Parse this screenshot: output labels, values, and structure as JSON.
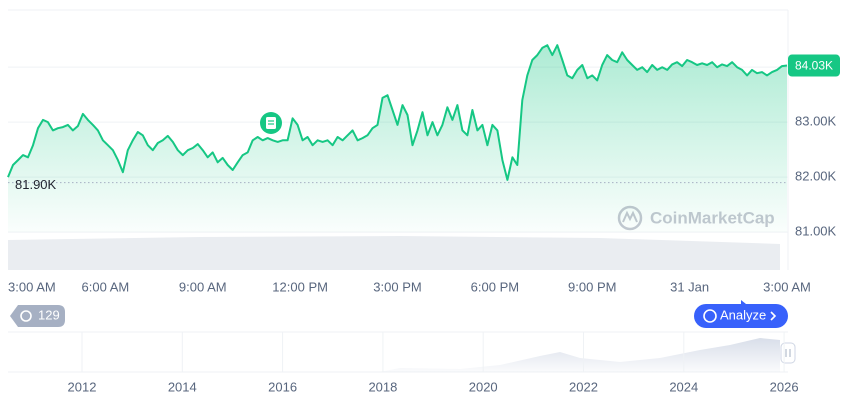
{
  "chart_data": {
    "type": "line",
    "series": [
      {
        "color": "#16c784",
        "values": [
          82.0,
          82.22,
          82.31,
          82.4,
          82.36,
          82.58,
          82.89,
          83.04,
          83.0,
          82.85,
          82.89,
          82.91,
          82.95,
          82.85,
          82.93,
          83.15,
          83.04,
          82.95,
          82.85,
          82.67,
          82.58,
          82.49,
          82.31,
          82.09,
          82.49,
          82.67,
          82.82,
          82.76,
          82.58,
          82.49,
          82.62,
          82.67,
          82.75,
          82.64,
          82.49,
          82.4,
          82.49,
          82.53,
          82.6,
          82.49,
          82.36,
          82.45,
          82.27,
          82.35,
          82.22,
          82.13,
          82.27,
          82.4,
          82.45,
          82.67,
          82.73,
          82.67,
          82.71,
          82.67,
          82.64,
          82.67,
          82.67,
          83.07,
          82.95,
          82.67,
          82.73,
          82.58,
          82.67,
          82.64,
          82.67,
          82.58,
          82.73,
          82.67,
          82.76,
          82.85,
          82.67,
          82.71,
          82.76,
          82.89,
          82.95,
          83.44,
          83.49,
          83.22,
          82.95,
          83.31,
          83.13,
          82.58,
          82.85,
          83.18,
          82.76,
          83.0,
          82.76,
          82.95,
          83.27,
          83.04,
          83.31,
          82.85,
          82.76,
          83.22,
          82.85,
          82.95,
          82.58,
          82.95,
          82.85,
          82.31,
          81.95,
          82.36,
          82.22,
          83.4,
          83.85,
          84.13,
          84.22,
          84.35,
          84.4,
          84.22,
          84.4,
          84.13,
          83.85,
          83.8,
          83.95,
          84.04,
          83.8,
          83.85,
          83.76,
          84.04,
          84.22,
          84.13,
          84.09,
          84.27,
          84.13,
          84.04,
          83.95,
          84.0,
          83.91,
          84.04,
          83.95,
          84.0,
          83.95,
          84.05,
          84.09,
          84.02,
          84.13,
          84.09,
          84.04,
          84.07,
          84.04,
          84.09,
          84.0,
          84.05,
          84.02,
          84.09,
          84.0,
          83.95,
          83.85,
          83.95,
          83.89,
          83.91,
          83.85,
          83.91,
          83.95,
          84.02,
          84.03
        ]
      }
    ],
    "ylim": [
      80.31,
      85.04
    ],
    "yticks": [
      {
        "value": 81,
        "label": "81.00K"
      },
      {
        "value": 82,
        "label": "82.00K"
      },
      {
        "value": 83,
        "label": "83.00K"
      },
      {
        "value": 84,
        "label": "84.00K"
      }
    ],
    "x_labels": [
      "3:00 AM",
      "6:00 AM",
      "9:00 AM",
      "12:00 PM",
      "3:00 PM",
      "6:00 PM",
      "9:00 PM",
      "31 Jan",
      "3:00 AM"
    ],
    "reference_line": {
      "value": 81.9,
      "label": "81.90K"
    },
    "current_price": {
      "value": 84.03,
      "label": "84.03K"
    },
    "navigator_years": [
      "2012",
      "2014",
      "2016",
      "2018",
      "2020",
      "2022",
      "2024",
      "2026"
    ],
    "badge_count": "129",
    "analyze_button": "Analyze",
    "watermark": "CoinMarketCap",
    "grid": true
  }
}
